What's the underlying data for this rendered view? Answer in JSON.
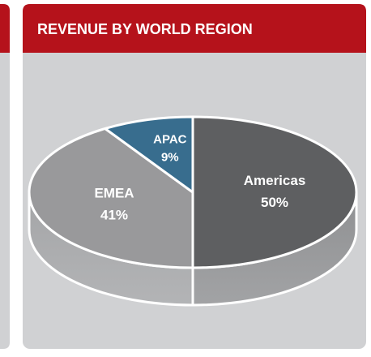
{
  "chart_data": {
    "type": "pie",
    "title": "REVENUE BY WORLD REGION",
    "categories": [
      "Americas",
      "EMEA",
      "APAC"
    ],
    "values": [
      50,
      41,
      9
    ],
    "value_labels": [
      "50%",
      "41%",
      "9%"
    ],
    "colors": [
      "#5e5f61",
      "#99999b",
      "#386d8e"
    ]
  }
}
